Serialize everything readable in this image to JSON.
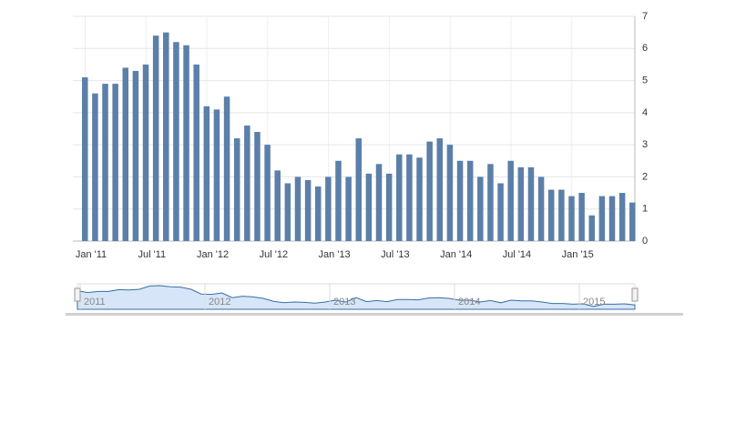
{
  "chart_data": {
    "type": "bar",
    "categories": [
      "Jan '11",
      null,
      null,
      null,
      null,
      null,
      "Jul '11",
      null,
      null,
      null,
      null,
      null,
      "Jan '12",
      null,
      null,
      null,
      null,
      null,
      "Jul '12",
      null,
      null,
      null,
      null,
      null,
      "Jan '13",
      null,
      null,
      null,
      null,
      null,
      "Jul '13",
      null,
      null,
      null,
      null,
      null,
      "Jan '14",
      null,
      null,
      null,
      null,
      null,
      "Jul '14",
      null,
      null,
      null,
      null,
      null,
      "Jan '15",
      null,
      null,
      null,
      null,
      null,
      null
    ],
    "values": [
      5.1,
      4.6,
      4.9,
      4.9,
      5.4,
      5.3,
      5.5,
      6.4,
      6.5,
      6.2,
      6.1,
      5.5,
      4.2,
      4.1,
      4.5,
      3.2,
      3.6,
      3.4,
      3.0,
      2.2,
      1.8,
      2.0,
      1.9,
      1.7,
      2.0,
      2.5,
      2.0,
      3.2,
      2.1,
      2.4,
      2.1,
      2.7,
      2.7,
      2.6,
      3.1,
      3.2,
      3.0,
      2.5,
      2.5,
      2.0,
      2.4,
      1.8,
      2.5,
      2.3,
      2.3,
      2.0,
      1.6,
      1.6,
      1.4,
      1.5,
      0.8,
      1.4,
      1.4,
      1.5,
      1.2
    ],
    "color": "#5b7fa8",
    "ylim": [
      0,
      7
    ],
    "yticks": [
      0,
      1,
      2,
      3,
      4,
      5,
      6,
      7
    ],
    "grid": true,
    "navigator_labels": [
      "2011",
      "2012",
      "2013",
      "2014",
      "2015"
    ],
    "navigator_color": "#d6e6f8"
  }
}
